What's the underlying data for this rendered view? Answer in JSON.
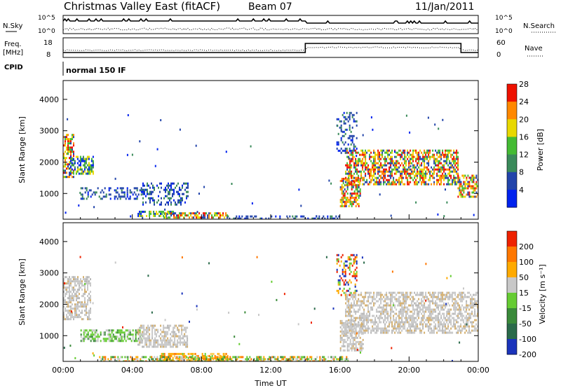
{
  "header": {
    "station": "Christmas Valley East (fitACF)",
    "beam": "Beam 07",
    "date": "11/Jan/2011"
  },
  "panels": {
    "nsky": {
      "left_label": "N.Sky",
      "right_label": "N.Search",
      "ytick_top": "10^5",
      "ytick_bottom": "10^0"
    },
    "freq": {
      "left_label_1": "Freq.",
      "left_label_2": "[MHz]",
      "right_label": "Nave",
      "left_ticks": [
        "18",
        "8"
      ],
      "right_ticks": [
        "60",
        "0"
      ]
    },
    "cpid": {
      "label": "CPID",
      "value": "normal 150 IF"
    }
  },
  "chart_data": [
    {
      "type": "heatmap",
      "name": "power",
      "ylabel": "Slant Range [km]",
      "yticks": [
        1000,
        2000,
        3000,
        4000
      ],
      "ylim": [
        180,
        4600
      ],
      "xlim": [
        0,
        24
      ],
      "xticks": [
        "00:00",
        "04:00",
        "08:00",
        "12:00",
        "16:00",
        "20:00",
        "00:00"
      ],
      "colorbar": {
        "label": "Power [dB]",
        "ticks": [
          "4",
          "8",
          "12",
          "16",
          "20",
          "24",
          "28"
        ],
        "colors": [
          "#0022ee",
          "#2244aa",
          "#3a8a5a",
          "#44bb33",
          "#e8d800",
          "#ff8800",
          "#ee1100"
        ]
      },
      "regions": [
        {
          "t": [
            0.0,
            0.6
          ],
          "r": [
            1500,
            2900
          ],
          "level": "high"
        },
        {
          "t": [
            0.4,
            1.7
          ],
          "r": [
            1600,
            2200
          ],
          "level": "mid"
        },
        {
          "t": [
            1.0,
            4.5
          ],
          "r": [
            800,
            1200
          ],
          "level": "low"
        },
        {
          "t": [
            4.3,
            6.4
          ],
          "r": [
            250,
            450
          ],
          "level": "mid"
        },
        {
          "t": [
            5.8,
            9.5
          ],
          "r": [
            200,
            400
          ],
          "level": "high"
        },
        {
          "t": [
            4.5,
            7.2
          ],
          "r": [
            650,
            1350
          ],
          "level": "low"
        },
        {
          "t": [
            9.5,
            16.0
          ],
          "r": [
            190,
            300
          ],
          "level": "low"
        },
        {
          "t": [
            16.0,
            17.2
          ],
          "r": [
            600,
            1500
          ],
          "level": "high"
        },
        {
          "t": [
            16.3,
            22.8
          ],
          "r": [
            1300,
            2400
          ],
          "level": "high"
        },
        {
          "t": [
            15.8,
            17.0
          ],
          "r": [
            2300,
            3600
          ],
          "level": "low"
        },
        {
          "t": [
            22.8,
            24.0
          ],
          "r": [
            900,
            1600
          ],
          "level": "high"
        }
      ]
    },
    {
      "type": "heatmap",
      "name": "velocity",
      "ylabel": "Slant Range [km]",
      "yticks": [
        1000,
        2000,
        3000,
        4000
      ],
      "ylim": [
        180,
        4600
      ],
      "xlim": [
        0,
        24
      ],
      "xticks": [
        "00:00",
        "04:00",
        "08:00",
        "12:00",
        "16:00",
        "20:00",
        "00:00"
      ],
      "xlabel": "Time UT",
      "colorbar": {
        "label": "Velocity [m s⁻¹]",
        "ticks": [
          "200",
          "100",
          "50",
          "15",
          "-15",
          "-50",
          "-100",
          "-200"
        ],
        "colors": [
          "#1a33bb",
          "#2a6a4a",
          "#3a8a3a",
          "#66cc33",
          "#c8c8c8",
          "#ffaa00",
          "#ff7700",
          "#ee2200"
        ]
      },
      "regions": [
        {
          "t": [
            0.0,
            1.6
          ],
          "r": [
            1500,
            2900
          ],
          "level": "gray"
        },
        {
          "t": [
            1.0,
            4.5
          ],
          "r": [
            800,
            1200
          ],
          "level": "green"
        },
        {
          "t": [
            4.3,
            7.2
          ],
          "r": [
            650,
            1350
          ],
          "level": "gray"
        },
        {
          "t": [
            5.5,
            9.5
          ],
          "r": [
            200,
            450
          ],
          "level": "orange"
        },
        {
          "t": [
            2.0,
            16.5
          ],
          "r": [
            180,
            350
          ],
          "level": "mixed"
        },
        {
          "t": [
            16.0,
            17.3
          ],
          "r": [
            500,
            1500
          ],
          "level": "gray"
        },
        {
          "t": [
            16.3,
            24.0
          ],
          "r": [
            1100,
            2400
          ],
          "level": "gray"
        },
        {
          "t": [
            15.8,
            17.0
          ],
          "r": [
            2300,
            3600
          ],
          "level": "sparse"
        }
      ]
    }
  ],
  "colors": {
    "frame": "#000000",
    "cpid_bg": "#ffffff"
  }
}
